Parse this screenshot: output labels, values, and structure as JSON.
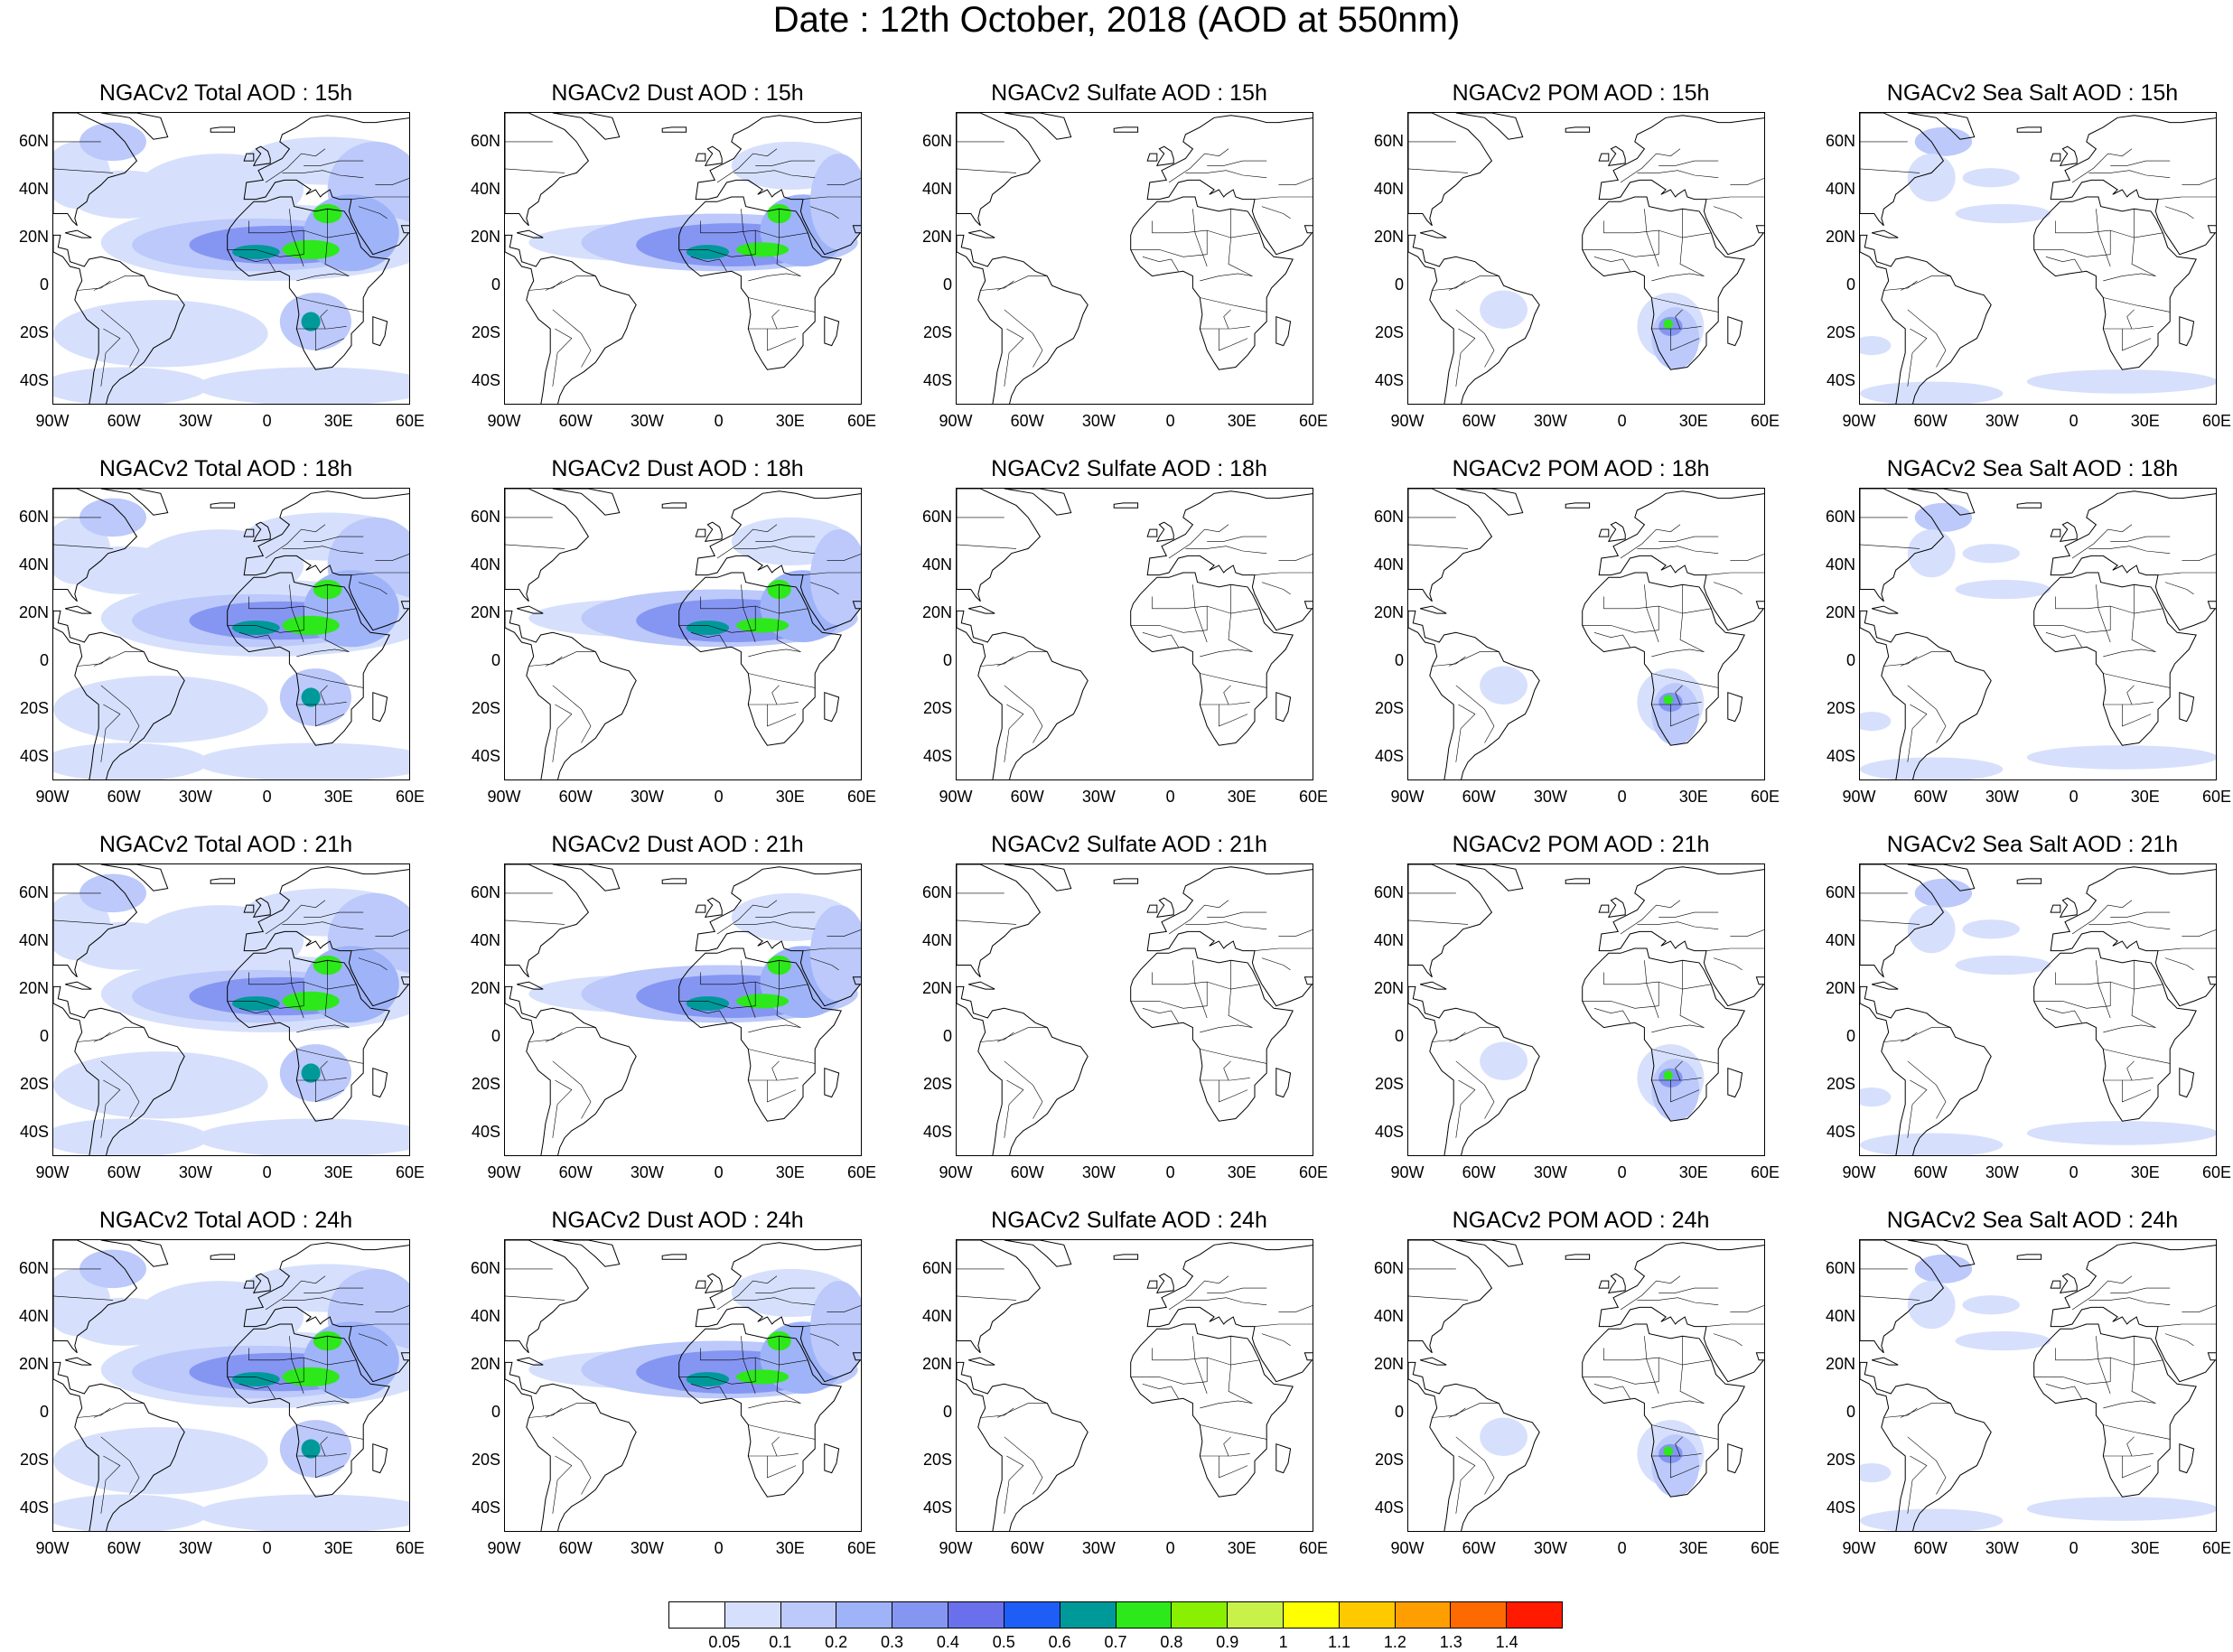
{
  "title": "Date : 12th October, 2018 (AOD at 550nm)",
  "lat_labels": [
    "60N",
    "40N",
    "20N",
    "0",
    "20S",
    "40S"
  ],
  "lon_labels": [
    "90W",
    "60W",
    "30W",
    "0",
    "30E",
    "60E"
  ],
  "rows": [
    {
      "hour": "15h",
      "titles": [
        "NGACv2 Total AOD : 15h",
        "NGACv2 Dust AOD : 15h",
        "NGACv2 Sulfate AOD : 15h",
        "NGACv2 POM AOD : 15h",
        "NGACv2 Sea Salt AOD : 15h"
      ]
    },
    {
      "hour": "18h",
      "titles": [
        "NGACv2 Total AOD : 18h",
        "NGACv2 Dust AOD : 18h",
        "NGACv2 Sulfate AOD : 18h",
        "NGACv2 POM AOD : 18h",
        "NGACv2 Sea Salt AOD : 18h"
      ]
    },
    {
      "hour": "21h",
      "titles": [
        "NGACv2 Total AOD : 21h",
        "NGACv2 Dust AOD : 21h",
        "NGACv2 Sulfate AOD : 21h",
        "NGACv2 POM AOD : 21h",
        "NGACv2 Sea Salt AOD : 21h"
      ]
    },
    {
      "hour": "24h",
      "titles": [
        "NGACv2 Total AOD : 24h",
        "NGACv2 Dust AOD : 24h",
        "NGACv2 Sulfate AOD : 24h",
        "NGACv2 POM AOD : 24h",
        "NGACv2 Sea Salt  AOD : 24h"
      ]
    }
  ],
  "colorbar": {
    "labels": [
      "0.05",
      "0.1",
      "0.2",
      "0.3",
      "0.4",
      "0.5",
      "0.6",
      "0.7",
      "0.8",
      "0.9",
      "1",
      "1.1",
      "1.2",
      "1.3",
      "1.4"
    ],
    "colors": [
      "#ffffff",
      "#d6e0fc",
      "#bcc9fa",
      "#9fb3f8",
      "#8596f2",
      "#6a70ec",
      "#1e5ef7",
      "#00999a",
      "#2de81a",
      "#88f000",
      "#c8f24a",
      "#ffff00",
      "#ffc900",
      "#ff9e00",
      "#ff6a00",
      "#ff1a00"
    ]
  }
}
